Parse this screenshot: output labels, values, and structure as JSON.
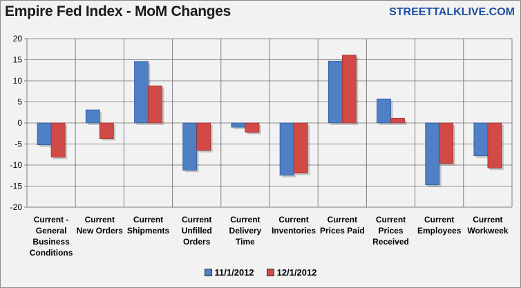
{
  "header": {
    "title": "Empire Fed Index - MoM Changes",
    "brand": "STREETTALKLIVE.COM"
  },
  "colors": {
    "brand": "#1f4fa0",
    "series_1": "#4f7fc4",
    "series_2": "#d14a47",
    "plot_bg": "#f2f2f2",
    "gridline": "#8c8c8c"
  },
  "chart_data": {
    "type": "bar",
    "title": "Empire Fed Index - MoM Changes",
    "xlabel": "",
    "ylabel": "",
    "ylim": [
      -20,
      20
    ],
    "yticks": [
      20,
      15,
      10,
      5,
      0,
      -5,
      -10,
      -15,
      -20
    ],
    "grid": true,
    "legend_position": "bottom",
    "categories": [
      [
        "Current -",
        "General",
        "Business",
        "Conditions"
      ],
      [
        "Current",
        "New Orders"
      ],
      [
        "Current",
        "Shipments"
      ],
      [
        "Current",
        "Unfilled",
        "Orders"
      ],
      [
        "Current",
        "Delivery",
        "Time"
      ],
      [
        "Current",
        "Inventories"
      ],
      [
        "Current",
        "Prices Paid"
      ],
      [
        "Current",
        "Prices",
        "Received"
      ],
      [
        "Current",
        "Employees"
      ],
      [
        "Current",
        "Workweek"
      ]
    ],
    "series": [
      {
        "name": "11/1/2012",
        "values": [
          -5.2,
          3.1,
          14.6,
          -11.2,
          -1.0,
          -12.4,
          14.7,
          5.7,
          -14.7,
          -7.8
        ]
      },
      {
        "name": "12/1/2012",
        "values": [
          -8.1,
          -3.7,
          8.8,
          -6.5,
          -2.2,
          -11.9,
          16.1,
          1.1,
          -9.6,
          -10.7
        ]
      }
    ]
  }
}
